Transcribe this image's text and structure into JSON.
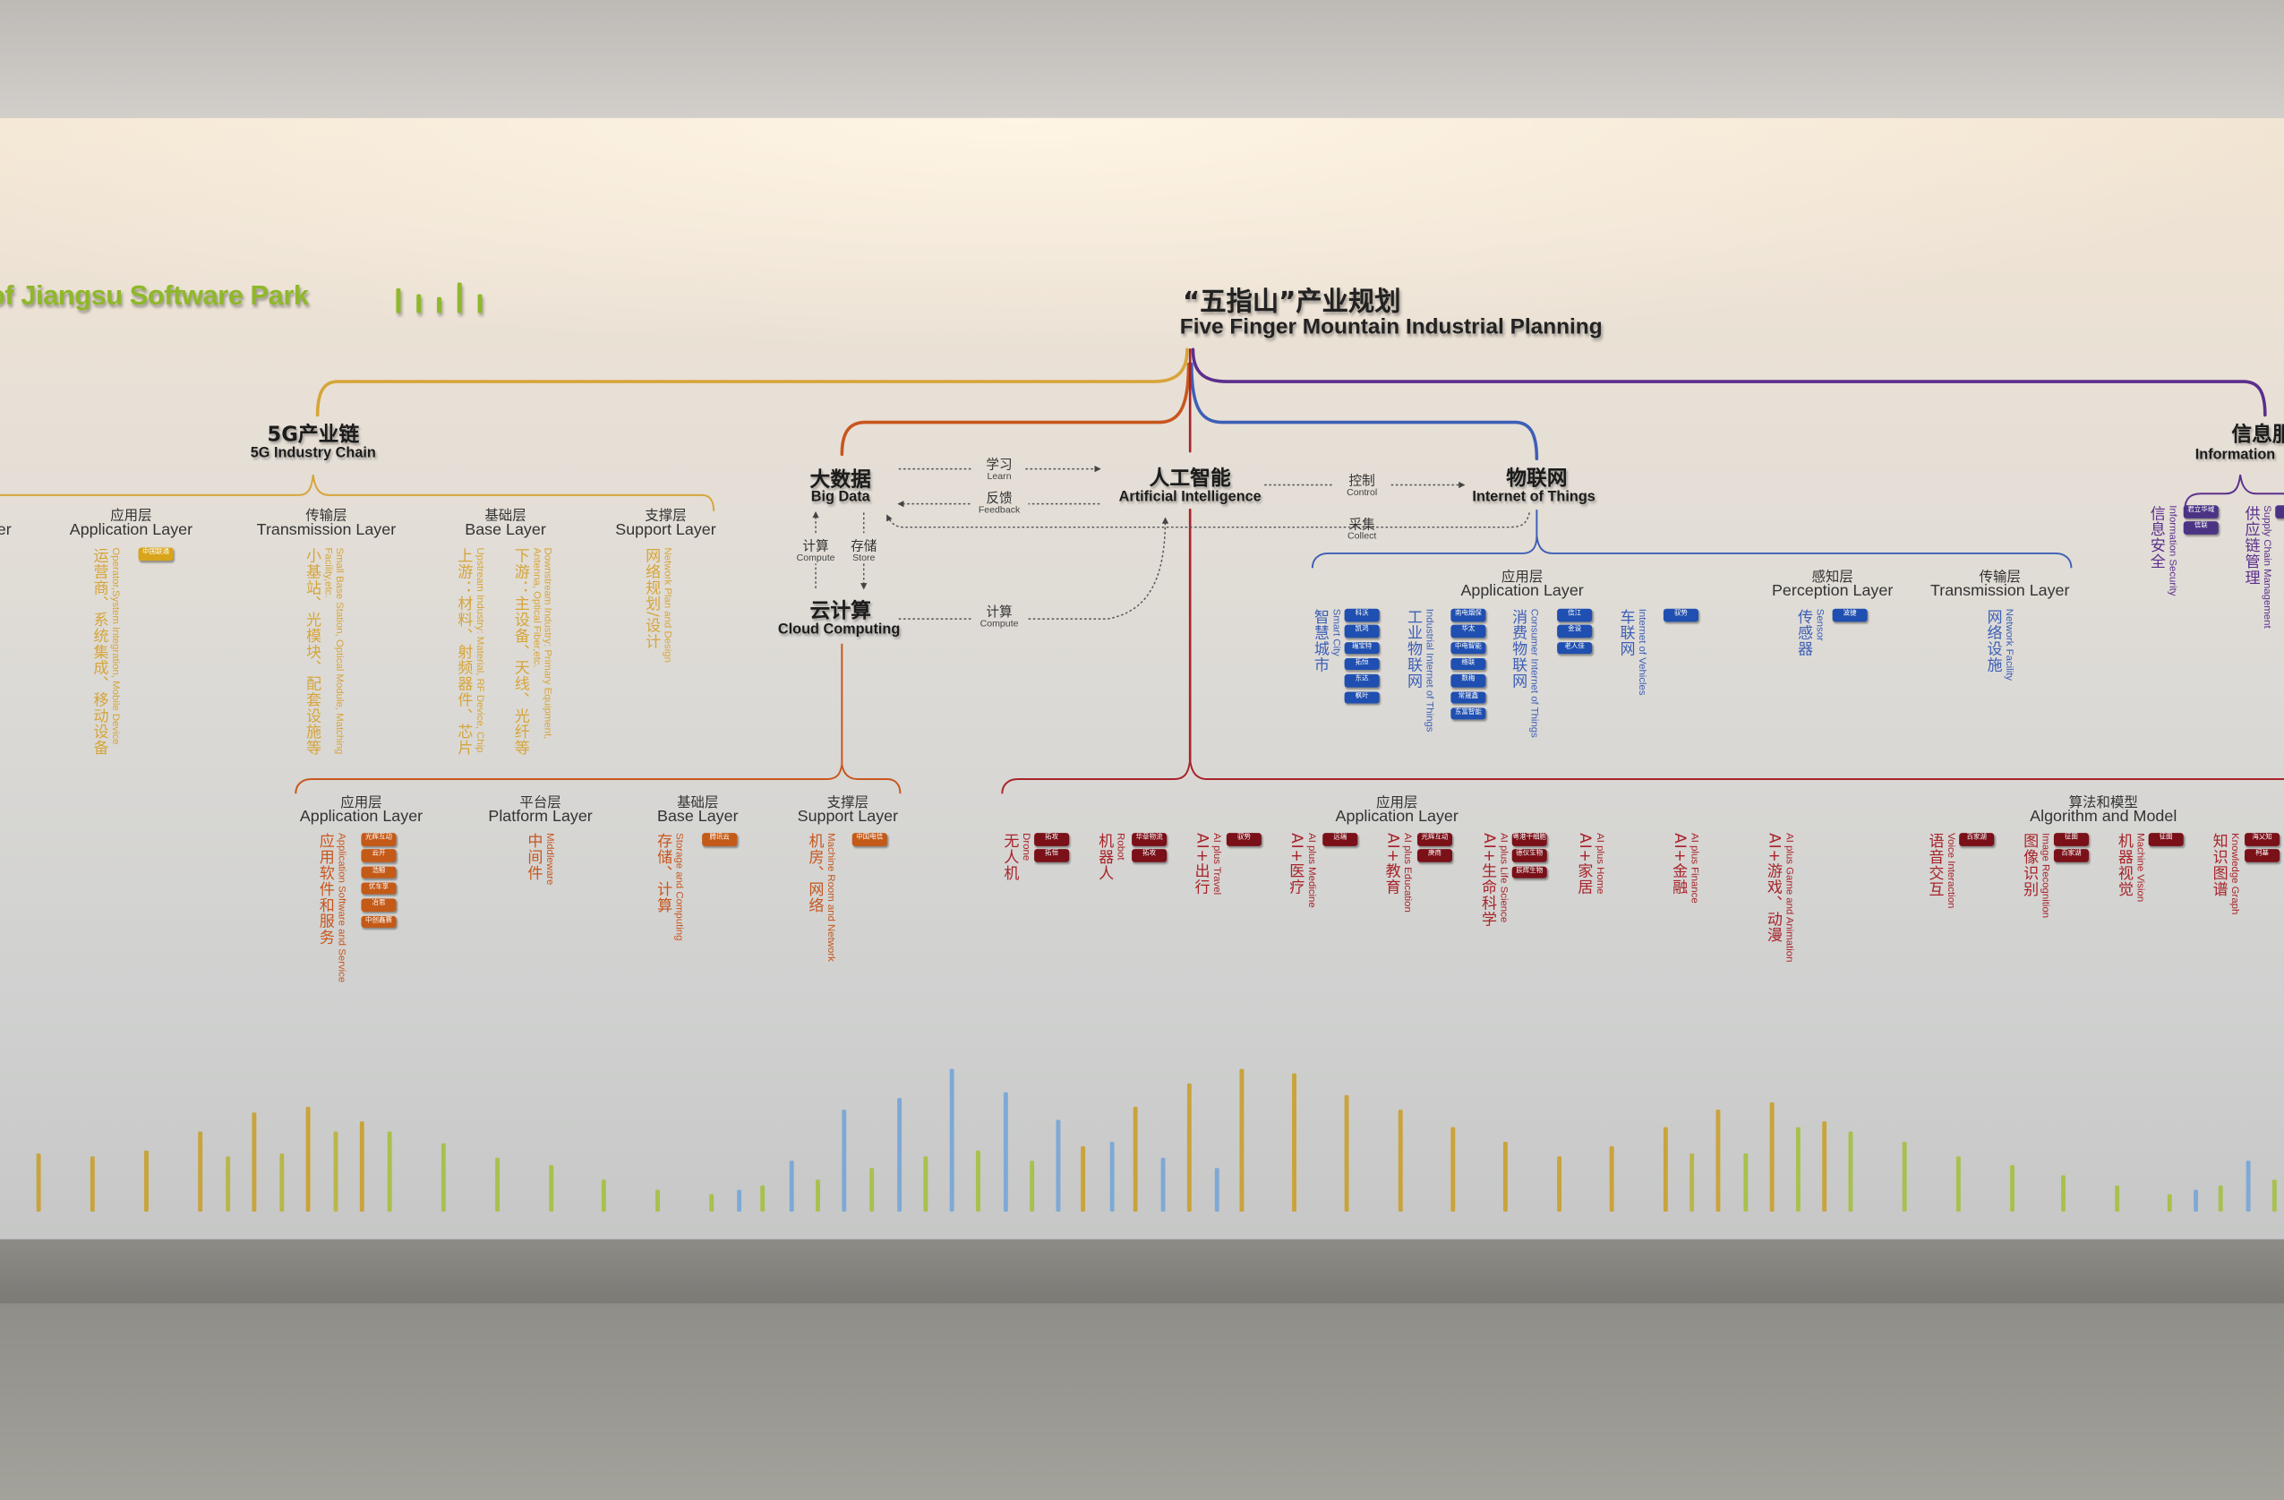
{
  "park_title": "of Jiangsu Software Park",
  "main_title": {
    "cn": "“五指山”产业规划",
    "en": "Five Finger Mountain Industrial Planning"
  },
  "colors": {
    "five_g": "#d6a53a",
    "big_data_cloud": "#c8561e",
    "ai": "#a8232a",
    "iot": "#3d5fb6",
    "info": "#5b2f8c",
    "badge_five_g": "#d8a41c",
    "badge_cloud": "#c45a18",
    "badge_iot": "#1f4fb0",
    "badge_ai": "#7a1018",
    "badge_info": "#4b3384"
  },
  "five_g": {
    "cn": "5G产业链",
    "en": "5G Industry Chain",
    "cut_layer_en": "er",
    "layers": [
      {
        "cn": "应用层",
        "en": "Application Layer",
        "items": [
          {
            "cn": "运营商、系统集成、移动设备",
            "en": "Operator,System Integration, Mobile Device",
            "badges": [
              "中国联通"
            ]
          }
        ]
      },
      {
        "cn": "传输层",
        "en": "Transmission Layer",
        "items": [
          {
            "cn": "小基站、光模块、配套设施等",
            "en": "Small Base Station, Optical Module, Matching Facility,etc.",
            "badges": []
          }
        ]
      },
      {
        "cn": "基础层",
        "en": "Base Layer",
        "items": [
          {
            "cn": "上游：材料、射频器件、芯片",
            "en": "Upstream Industry: Material, RF Device, Chip",
            "badges": []
          },
          {
            "cn": "下游：主设备、天线、光纤等",
            "en": "Downstream Industry: Primary Equipment, Antenna, Optical Fiber,etc.",
            "badges": []
          }
        ]
      },
      {
        "cn": "支撑层",
        "en": "Support Layer",
        "items": [
          {
            "cn": "网络规划/设计",
            "en": "Network Plan and Design",
            "badges": []
          }
        ]
      }
    ]
  },
  "core": {
    "big_data": {
      "cn": "大数据",
      "en": "Big Data"
    },
    "ai": {
      "cn": "人工智能",
      "en": "Artificial Intelligence"
    },
    "iot": {
      "cn": "物联网",
      "en": "Internet of Things"
    },
    "cloud": {
      "cn": "云计算",
      "en": "Cloud Computing"
    },
    "flows": {
      "learn": {
        "cn": "学习",
        "en": "Learn"
      },
      "feedback": {
        "cn": "反馈",
        "en": "Feedback"
      },
      "control": {
        "cn": "控制",
        "en": "Control"
      },
      "collect": {
        "cn": "采集",
        "en": "Collect"
      },
      "compute": {
        "cn": "计算",
        "en": "Compute"
      },
      "store": {
        "cn": "存储",
        "en": "Store"
      },
      "cloud_compute": {
        "cn": "计算",
        "en": "Compute"
      }
    }
  },
  "iot": {
    "layers": [
      {
        "cn": "应用层",
        "en": "Application Layer",
        "items": [
          {
            "cn": "智慧城市",
            "en": "Smart City",
            "badges": [
              "科沃",
              "凯鸿",
              "瑞宝特",
              "拓恒",
              "东达",
              "枫叶"
            ]
          },
          {
            "cn": "工业物联网",
            "en": "Industrial Internet of Things",
            "badges": [
              "南电烟保",
              "华太",
              "中电智能",
              "络联",
              "数梅",
              "常晟鑫",
              "东富智能"
            ]
          },
          {
            "cn": "消费物联网",
            "en": "Consumer Internet of Things",
            "badges": [
              "信江",
              "金设",
              "老人佳"
            ]
          },
          {
            "cn": "车联网",
            "en": "Internet of Vehicles",
            "badges": [
              "驭势"
            ]
          }
        ]
      },
      {
        "cn": "感知层",
        "en": "Perception Layer",
        "items": [
          {
            "cn": "传感器",
            "en": "Sensor",
            "badges": [
              "波捷"
            ]
          }
        ]
      },
      {
        "cn": "传输层",
        "en": "Transmission Layer",
        "items": [
          {
            "cn": "网络设施",
            "en": "Network Facility",
            "badges": []
          }
        ]
      }
    ]
  },
  "info": {
    "cn": "信息服务",
    "en": "Information",
    "items": [
      {
        "cn": "信息安全",
        "en": "Information Security",
        "badges": [
          "君立华域",
          "信联"
        ]
      },
      {
        "cn": "供应链管理",
        "en": "Supply Chain Management",
        "badges": [
          ""
        ]
      }
    ]
  },
  "cloud": {
    "layers": [
      {
        "cn": "应用层",
        "en": "Application Layer",
        "items": [
          {
            "cn": "应用软件和服务",
            "en": "Application Software and Service",
            "badges": [
              "光辉互动",
              "云开",
              "浩鲸",
              "优车享",
              "冶思",
              "中创鑫赛"
            ]
          }
        ]
      },
      {
        "cn": "平台层",
        "en": "Platform Layer",
        "items": [
          {
            "cn": "中间件",
            "en": "Middleware",
            "badges": []
          }
        ]
      },
      {
        "cn": "基础层",
        "en": "Base Layer",
        "items": [
          {
            "cn": "存储、计算",
            "en": "Storage and Computing",
            "badges": [
              "腾讯云"
            ]
          }
        ]
      },
      {
        "cn": "支撑层",
        "en": "Support Layer",
        "items": [
          {
            "cn": "机房、网络",
            "en": "Machine Room and Network",
            "badges": [
              "中国电信"
            ]
          }
        ]
      }
    ]
  },
  "ai": {
    "layers": [
      {
        "cn": "应用层",
        "en": "Application Layer",
        "items": [
          {
            "cn": "无人机",
            "en": "Drone",
            "badges": [
              "拓攻",
              "拓恒"
            ]
          },
          {
            "cn": "机器人",
            "en": "Robot",
            "badges": [
              "华章物流",
              "拓攻"
            ]
          },
          {
            "cn": "AI+出行",
            "en": "AI plus Travel",
            "badges": [
              "驭势"
            ]
          },
          {
            "cn": "AI+医疗",
            "en": "AI plus Medicine",
            "badges": [
              "远瑞"
            ]
          },
          {
            "cn": "AI+教育",
            "en": "AI plus Education",
            "badges": [
              "光辉互动",
              "庚商"
            ]
          },
          {
            "cn": "AI+生命科学",
            "en": "AI plus Life Science",
            "badges": [
              "粤港干细胞",
              "德仪生物",
              "辰辉生物"
            ]
          },
          {
            "cn": "AI+家居",
            "en": "AI plus Home",
            "badges": []
          },
          {
            "cn": "AI+金融",
            "en": "AI plus Finance",
            "badges": []
          },
          {
            "cn": "AI+游戏、动漫",
            "en": "AI plus Game and Animation",
            "badges": []
          }
        ]
      },
      {
        "cn": "算法和模型",
        "en": "Algorithm and Model",
        "items": [
          {
            "cn": "语音交互",
            "en": "Voice Interaction",
            "badges": [
              "百家湖"
            ]
          },
          {
            "cn": "图像识别",
            "en": "Image Recognition",
            "badges": [
              "征图",
              "百家湖"
            ]
          },
          {
            "cn": "机器视觉",
            "en": "Machine Vision",
            "badges": [
              "征图"
            ]
          },
          {
            "cn": "知识图谱",
            "en": "Knowledge Graph",
            "badges": [
              "海乂知",
              "柯基"
            ]
          }
        ]
      }
    ]
  }
}
